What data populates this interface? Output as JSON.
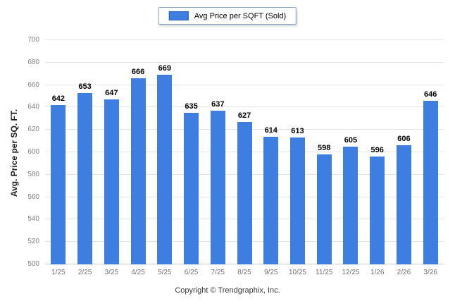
{
  "legend": {
    "label": "Avg Price per SQFT (Sold)",
    "swatch_color": "#3e7ee0"
  },
  "footer": {
    "text": "Copyright © Trendgraphix, Inc."
  },
  "chart_data": {
    "type": "bar",
    "title": "",
    "categories": [
      "1/25",
      "2/25",
      "3/25",
      "4/25",
      "5/25",
      "6/25",
      "7/25",
      "8/25",
      "9/25",
      "10/25",
      "11/25",
      "12/25",
      "1/26",
      "2/26",
      "3/26"
    ],
    "values": [
      642,
      653,
      647,
      666,
      669,
      635,
      637,
      627,
      614,
      613,
      598,
      605,
      596,
      606,
      646
    ],
    "xlabel": "",
    "ylabel": "Avg. Price per SQ. FT.",
    "ylim": [
      500,
      700
    ],
    "ytick_step": 20,
    "bar_color": "#3e7ee0",
    "grid": true,
    "legend_position": "top"
  }
}
